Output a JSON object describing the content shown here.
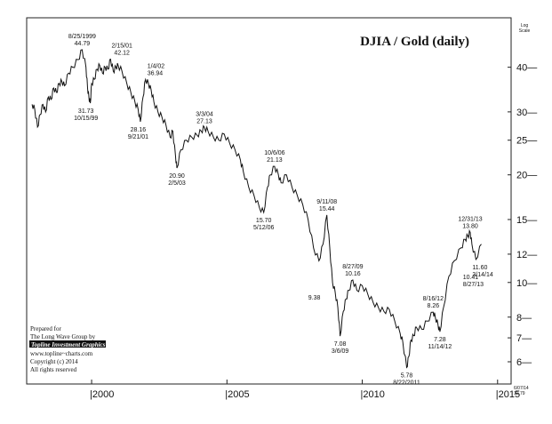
{
  "chart_data": {
    "type": "line",
    "title": "DJIA / Gold (daily)",
    "scale_label": [
      "Log",
      "Scale"
    ],
    "y_scale": "log",
    "ylim": [
      5.2,
      55
    ],
    "xlim": [
      1997.6,
      2015.5
    ],
    "y_ticks": [
      6,
      7,
      8,
      10,
      12,
      15,
      20,
      25,
      30,
      40
    ],
    "x_ticks": [
      2000,
      2005,
      2010,
      2015
    ],
    "series": [
      {
        "x": [
          1997.8,
          1997.9,
          1998.0,
          1998.1,
          1998.2,
          1998.3,
          1998.4,
          1998.5,
          1998.6,
          1998.7,
          1998.8,
          1998.9,
          1999.0,
          1999.15,
          1999.3,
          1999.5,
          1999.65,
          1999.79,
          1999.85,
          1999.9,
          1999.95,
          2000.0,
          2000.1,
          2000.2,
          2000.3,
          2000.4,
          2000.5,
          2000.6,
          2000.7,
          2000.8,
          2000.9,
          2000.98,
          2001.12,
          2001.3,
          2001.45,
          2001.6,
          2001.72,
          2001.8,
          2001.9,
          2001.99,
          2002.1,
          2002.2,
          2002.3,
          2002.45,
          2002.6,
          2002.75,
          2002.9,
          2003.0,
          2003.1,
          2003.15,
          2003.3,
          2003.5,
          2003.7,
          2003.9,
          2004.05,
          2004.17,
          2004.3,
          2004.5,
          2004.7,
          2004.9,
          2005.1,
          2005.3,
          2005.5,
          2005.6,
          2005.8,
          2006.0,
          2006.2,
          2006.36,
          2006.5,
          2006.6,
          2006.76,
          2006.9,
          2007.0,
          2007.2,
          2007.4,
          2007.6,
          2007.8,
          2008.0,
          2008.2,
          2008.4,
          2008.55,
          2008.69,
          2008.8,
          2008.9,
          2009.0,
          2009.1,
          2009.18,
          2009.3,
          2009.4,
          2009.5,
          2009.65,
          2009.8,
          2010.0,
          2010.2,
          2010.4,
          2010.6,
          2010.8,
          2011.0,
          2011.2,
          2011.4,
          2011.5,
          2011.64,
          2011.72,
          2011.8,
          2011.9,
          2012.0,
          2012.2,
          2012.4,
          2012.62,
          2012.7,
          2012.8,
          2012.87,
          2013.0,
          2013.2,
          2013.4,
          2013.65,
          2013.8,
          2013.9,
          2013.99,
          2014.05,
          2014.2,
          2014.4
        ],
        "y": [
          31.5,
          30.5,
          27.2,
          29.5,
          31.5,
          30,
          33,
          32.5,
          35,
          34,
          36,
          36.5,
          35.5,
          38.5,
          40,
          42,
          44.79,
          40,
          35,
          33,
          31.73,
          36,
          37,
          39.5,
          40.5,
          38.5,
          40,
          39.5,
          42.12,
          39,
          40,
          40.5,
          39,
          36,
          34,
          32,
          30.5,
          28.16,
          33,
          36.94,
          36,
          34.5,
          32,
          30,
          29,
          27.5,
          25.5,
          26.5,
          22.5,
          20.9,
          23.5,
          25,
          25.5,
          25.8,
          26.5,
          27.13,
          26.5,
          25.5,
          25,
          26,
          24.5,
          23.5,
          22,
          20.5,
          18.5,
          17.5,
          16.2,
          15.7,
          18.5,
          20,
          21.13,
          20,
          19,
          20,
          18.5,
          17.5,
          16.5,
          15,
          12.5,
          11.5,
          12.8,
          15.44,
          12.5,
          10,
          9.38,
          8.5,
          7.08,
          8.3,
          9,
          9.5,
          10.16,
          9.5,
          9.8,
          9.3,
          8.8,
          8.5,
          8.3,
          8.4,
          7.8,
          7.2,
          6.8,
          5.78,
          6.2,
          6.9,
          7.1,
          7.5,
          7.4,
          7.8,
          8.26,
          8,
          7.6,
          7.28,
          8.5,
          10.41,
          11.5,
          12.5,
          13.2,
          13.5,
          13.8,
          12.8,
          11.6,
          12.8
        ]
      }
    ],
    "annotations": [
      {
        "x": 1999.65,
        "y": 44.79,
        "lines": [
          "8/25/1999",
          "44.79"
        ],
        "pos": "above"
      },
      {
        "x": 1999.79,
        "y": 31.73,
        "lines": [
          "31.73",
          "10/15/99"
        ],
        "pos": "below"
      },
      {
        "x": 2001.12,
        "y": 42.12,
        "lines": [
          "2/15/01",
          "42.12"
        ],
        "pos": "above"
      },
      {
        "x": 2001.99,
        "y": 36.94,
        "lines": [
          "1/4/02",
          "36.94"
        ],
        "pos": "above-right"
      },
      {
        "x": 2001.72,
        "y": 28.16,
        "lines": [
          "28.16",
          "9/21/01"
        ],
        "pos": "below"
      },
      {
        "x": 2004.17,
        "y": 27.13,
        "lines": [
          "3/3/04",
          "27.13"
        ],
        "pos": "above"
      },
      {
        "x": 2003.15,
        "y": 20.9,
        "lines": [
          "20.90",
          "2/5/03"
        ],
        "pos": "below"
      },
      {
        "x": 2006.76,
        "y": 21.13,
        "lines": [
          "10/6/06",
          "21.13"
        ],
        "pos": "above"
      },
      {
        "x": 2006.36,
        "y": 15.7,
        "lines": [
          "15.70",
          "5/12/06"
        ],
        "pos": "below"
      },
      {
        "x": 2008.69,
        "y": 15.44,
        "lines": [
          "9/11/08",
          "15.44"
        ],
        "pos": "above"
      },
      {
        "x": 2008.55,
        "y": 9.38,
        "lines": [
          "9.38"
        ],
        "pos": "below-left"
      },
      {
        "x": 2009.65,
        "y": 10.16,
        "lines": [
          "8/27/09",
          "10.16"
        ],
        "pos": "above"
      },
      {
        "x": 2009.18,
        "y": 7.08,
        "lines": [
          "7.08",
          "3/6/09"
        ],
        "pos": "below"
      },
      {
        "x": 2011.64,
        "y": 5.78,
        "lines": [
          "5.78",
          "8/22/2011"
        ],
        "pos": "below"
      },
      {
        "x": 2012.62,
        "y": 8.26,
        "lines": [
          "8/16/12",
          "8.26"
        ],
        "pos": "above"
      },
      {
        "x": 2012.87,
        "y": 7.28,
        "lines": [
          "7.28",
          "11/14/12"
        ],
        "pos": "below"
      },
      {
        "x": 2013.65,
        "y": 10.41,
        "lines": [
          "10.41",
          "8/27/13"
        ],
        "pos": "right"
      },
      {
        "x": 2013.99,
        "y": 13.8,
        "lines": [
          "12/31/13",
          "13.80"
        ],
        "pos": "above"
      },
      {
        "x": 2014.2,
        "y": 11.6,
        "lines": [
          "11.60",
          "3/14/14"
        ],
        "pos": "below-right"
      }
    ],
    "credit": {
      "lines": [
        "Prepared for",
        "The Long Wave Group by"
      ],
      "firm": "Topline Investment Graphics",
      "more": [
        "www.topline~charts.com",
        "Copyright (c) 2014",
        "All rights reserved"
      ]
    },
    "corner_note": [
      "6/07/14",
      "12.79"
    ]
  }
}
